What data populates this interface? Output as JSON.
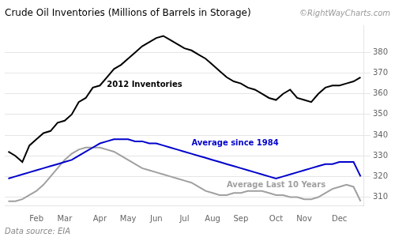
{
  "chart_data": {
    "type": "line",
    "title": "Crude Oil Inventories (Millions of Barrels in Storage)",
    "annotations": [
      "©RightWayCharts.com",
      "Data source: EIA"
    ],
    "x": [
      0,
      1,
      2,
      3,
      4,
      5,
      6,
      7,
      8,
      9,
      10,
      11,
      12,
      13,
      14,
      15,
      16,
      17,
      18,
      19,
      20,
      21,
      22,
      23,
      24,
      25,
      26,
      27,
      28,
      29,
      30,
      31,
      32,
      33,
      34,
      35,
      36,
      37,
      38,
      39,
      40,
      41,
      42,
      43,
      44,
      45,
      46,
      47,
      48,
      49,
      50
    ],
    "series": [
      {
        "name": "2012 Inventories",
        "color": "#000000",
        "values": [
          332,
          330,
          327,
          335,
          338,
          341,
          342,
          346,
          347,
          350,
          356,
          358,
          363,
          364,
          368,
          372,
          374,
          377,
          380,
          383,
          385,
          387,
          388,
          386,
          384,
          382,
          381,
          379,
          377,
          374,
          371,
          368,
          366,
          365,
          363,
          362,
          360,
          358,
          357,
          360,
          362,
          358,
          357,
          356,
          360,
          363,
          364,
          364,
          365,
          366,
          368
        ]
      },
      {
        "name": "Average since 1984",
        "color": "#0000cc",
        "values": [
          319,
          320,
          321,
          322,
          323,
          324,
          325,
          326,
          327,
          328,
          330,
          332,
          334,
          336,
          337,
          338,
          338,
          338,
          337,
          337,
          336,
          336,
          335,
          334,
          333,
          332,
          331,
          330,
          329,
          328,
          327,
          326,
          325,
          324,
          323,
          322,
          321,
          320,
          319,
          320,
          321,
          322,
          323,
          324,
          325,
          326,
          326,
          327,
          327,
          327,
          320
        ]
      },
      {
        "name": "Average Last 10 Years",
        "color": "#a0a0a0",
        "values": [
          308,
          308,
          309,
          311,
          313,
          316,
          320,
          324,
          328,
          331,
          333,
          334,
          334,
          334,
          333,
          332,
          330,
          328,
          326,
          324,
          323,
          322,
          321,
          320,
          319,
          318,
          317,
          315,
          313,
          312,
          311,
          311,
          312,
          312,
          313,
          313,
          313,
          312,
          311,
          311,
          310,
          310,
          309,
          309,
          310,
          312,
          314,
          315,
          316,
          315,
          308
        ]
      }
    ],
    "xlim": [
      -0.5,
      50.5
    ],
    "xticks": [
      {
        "value": 4,
        "label": "Feb"
      },
      {
        "value": 8,
        "label": "Mar"
      },
      {
        "value": 13,
        "label": "Apr"
      },
      {
        "value": 17,
        "label": "May"
      },
      {
        "value": 21,
        "label": "Jun"
      },
      {
        "value": 25,
        "label": "Jul"
      },
      {
        "value": 29,
        "label": "Aug"
      },
      {
        "value": 33,
        "label": "Sep"
      },
      {
        "value": 38,
        "label": "Oct"
      },
      {
        "value": 42,
        "label": "Nov"
      },
      {
        "value": 47,
        "label": "Dec"
      }
    ],
    "ylim": [
      306,
      393
    ],
    "yticks": [
      310,
      320,
      330,
      340,
      350,
      360,
      370,
      380
    ],
    "grid": "y"
  }
}
